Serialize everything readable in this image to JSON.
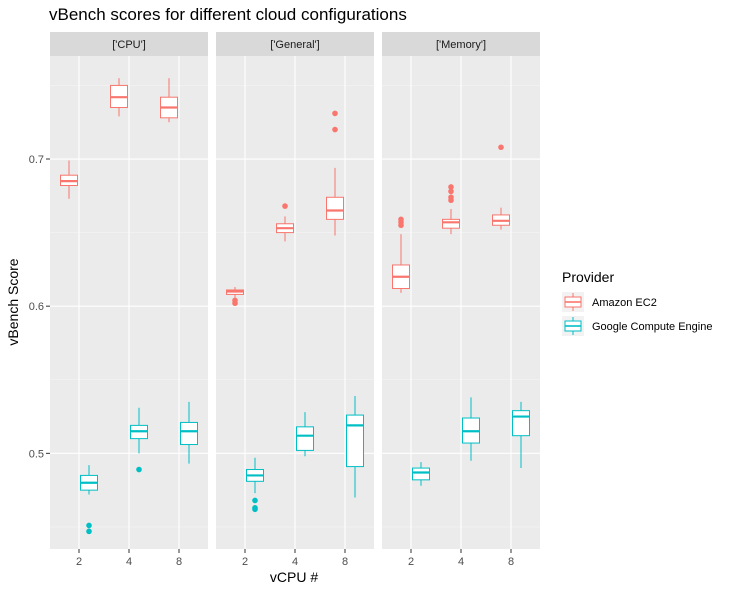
{
  "chart_data": {
    "type": "boxplot",
    "title": "vBench scores for different cloud configurations",
    "xlabel": "vCPU #",
    "ylabel": "vBench Score",
    "categories": [
      "2",
      "4",
      "8"
    ],
    "ylim": [
      0.435,
      0.77
    ],
    "y_ticks": [
      0.5,
      0.6,
      0.7
    ],
    "y_tick_labels": [
      "0.5",
      "0.6",
      "0.7"
    ],
    "grid": true,
    "legend": {
      "title": "Provider",
      "placement": "right",
      "entries": [
        {
          "name": "Amazon EC2",
          "color": "#F8766D"
        },
        {
          "name": "Google Compute Engine",
          "color": "#00BFC4"
        }
      ]
    },
    "panels": [
      {
        "label": "['CPU']",
        "series": [
          {
            "name": "Amazon EC2",
            "boxes": [
              {
                "x": "2",
                "min": 0.673,
                "q1": 0.682,
                "median": 0.685,
                "q3": 0.689,
                "max": 0.699,
                "outliers": []
              },
              {
                "x": "4",
                "min": 0.729,
                "q1": 0.735,
                "median": 0.742,
                "q3": 0.75,
                "max": 0.755,
                "outliers": []
              },
              {
                "x": "8",
                "min": 0.725,
                "q1": 0.728,
                "median": 0.735,
                "q3": 0.742,
                "max": 0.755,
                "outliers": []
              }
            ]
          },
          {
            "name": "Google Compute Engine",
            "boxes": [
              {
                "x": "2",
                "min": 0.472,
                "q1": 0.475,
                "median": 0.48,
                "q3": 0.485,
                "max": 0.492,
                "outliers": [
                  0.451,
                  0.447
                ]
              },
              {
                "x": "4",
                "min": 0.5,
                "q1": 0.51,
                "median": 0.515,
                "q3": 0.519,
                "max": 0.531,
                "outliers": [
                  0.489
                ]
              },
              {
                "x": "8",
                "min": 0.493,
                "q1": 0.506,
                "median": 0.515,
                "q3": 0.521,
                "max": 0.535,
                "outliers": []
              }
            ]
          }
        ]
      },
      {
        "label": "['General']",
        "series": [
          {
            "name": "Amazon EC2",
            "boxes": [
              {
                "x": "2",
                "min": 0.606,
                "q1": 0.608,
                "median": 0.61,
                "q3": 0.611,
                "max": 0.613,
                "outliers": [
                  0.604,
                  0.602
                ]
              },
              {
                "x": "4",
                "min": 0.644,
                "q1": 0.65,
                "median": 0.653,
                "q3": 0.656,
                "max": 0.661,
                "outliers": [
                  0.668
                ]
              },
              {
                "x": "8",
                "min": 0.648,
                "q1": 0.659,
                "median": 0.665,
                "q3": 0.674,
                "max": 0.694,
                "outliers": [
                  0.731,
                  0.72
                ]
              }
            ]
          },
          {
            "name": "Google Compute Engine",
            "boxes": [
              {
                "x": "2",
                "min": 0.473,
                "q1": 0.481,
                "median": 0.485,
                "q3": 0.489,
                "max": 0.497,
                "outliers": [
                  0.468,
                  0.463,
                  0.462
                ]
              },
              {
                "x": "4",
                "min": 0.498,
                "q1": 0.502,
                "median": 0.512,
                "q3": 0.518,
                "max": 0.528,
                "outliers": []
              },
              {
                "x": "8",
                "min": 0.47,
                "q1": 0.491,
                "median": 0.519,
                "q3": 0.526,
                "max": 0.539,
                "outliers": []
              }
            ]
          }
        ]
      },
      {
        "label": "['Memory']",
        "series": [
          {
            "name": "Amazon EC2",
            "boxes": [
              {
                "x": "2",
                "min": 0.609,
                "q1": 0.612,
                "median": 0.62,
                "q3": 0.628,
                "max": 0.649,
                "outliers": [
                  0.659,
                  0.657,
                  0.655
                ]
              },
              {
                "x": "4",
                "min": 0.649,
                "q1": 0.653,
                "median": 0.657,
                "q3": 0.659,
                "max": 0.666,
                "outliers": [
                  0.681,
                  0.678,
                  0.674,
                  0.672
                ]
              },
              {
                "x": "8",
                "min": 0.652,
                "q1": 0.655,
                "median": 0.658,
                "q3": 0.662,
                "max": 0.667,
                "outliers": [
                  0.708
                ]
              }
            ]
          },
          {
            "name": "Google Compute Engine",
            "boxes": [
              {
                "x": "2",
                "min": 0.478,
                "q1": 0.482,
                "median": 0.487,
                "q3": 0.49,
                "max": 0.494,
                "outliers": []
              },
              {
                "x": "4",
                "min": 0.495,
                "q1": 0.507,
                "median": 0.515,
                "q3": 0.524,
                "max": 0.538,
                "outliers": []
              },
              {
                "x": "8",
                "min": 0.49,
                "q1": 0.512,
                "median": 0.525,
                "q3": 0.529,
                "max": 0.535,
                "outliers": []
              }
            ]
          }
        ]
      }
    ]
  }
}
